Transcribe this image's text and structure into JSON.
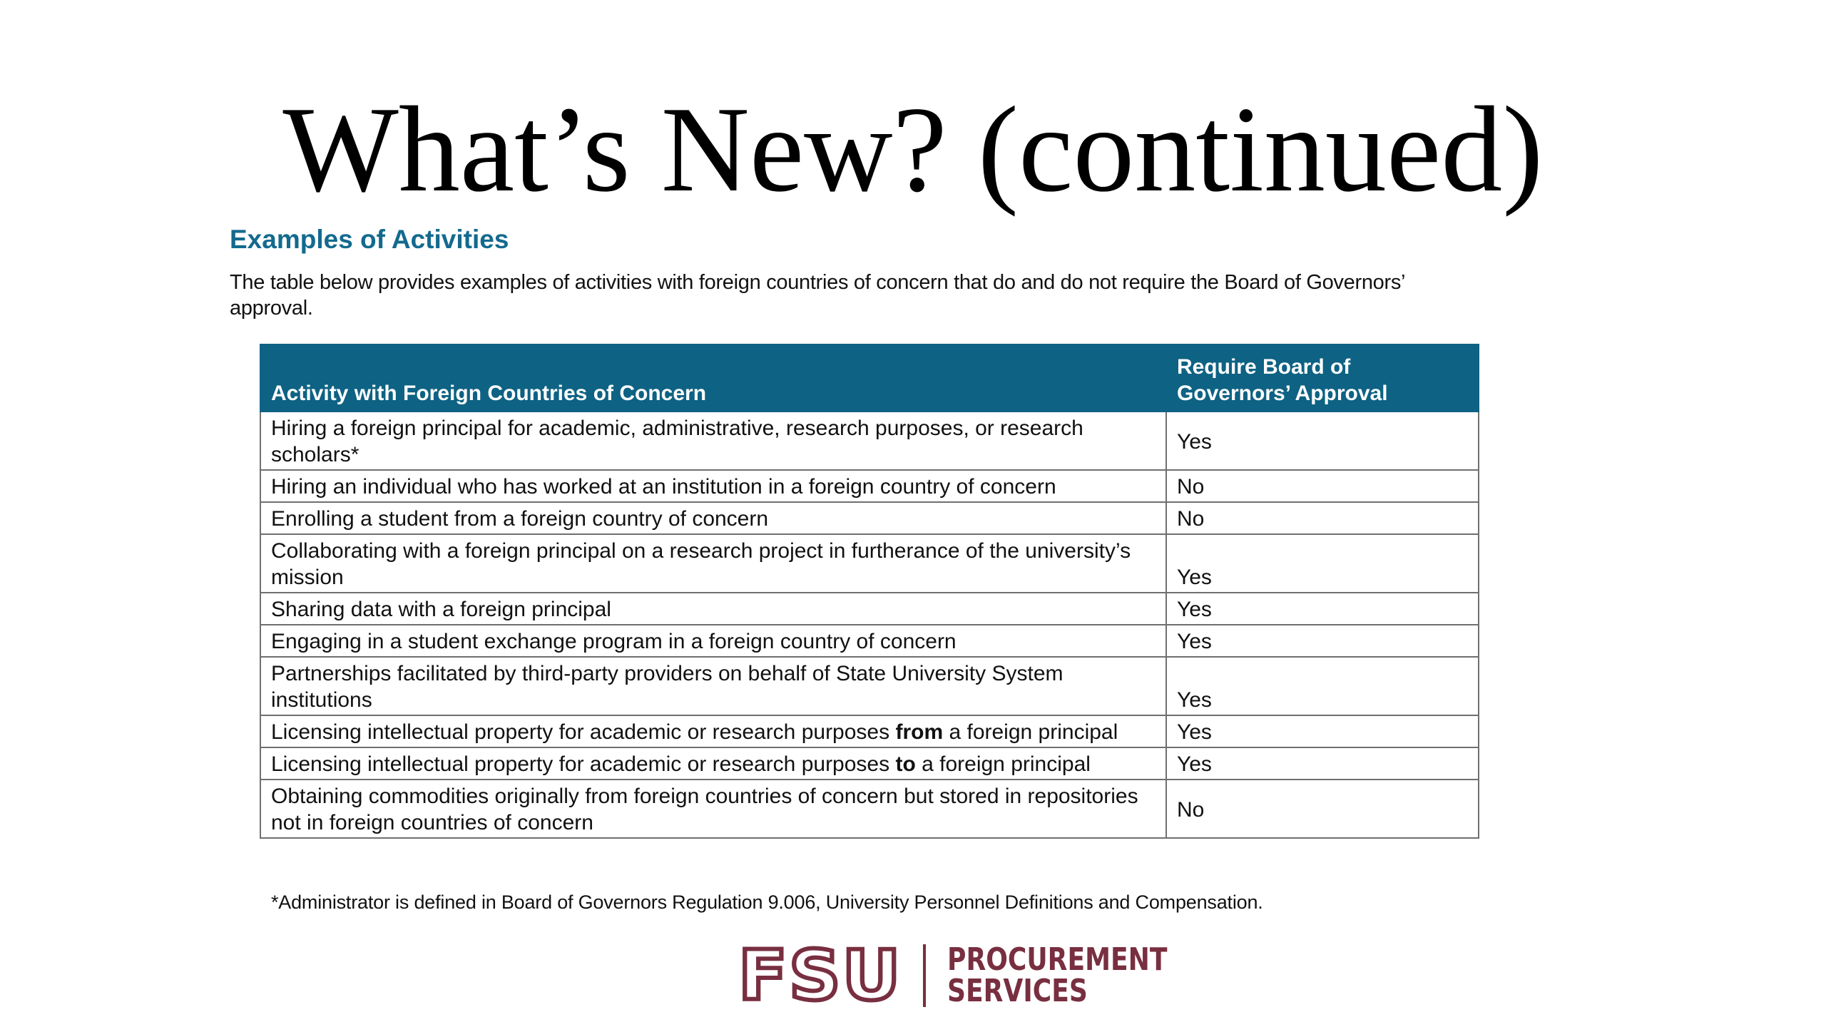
{
  "slide": {
    "title": "What’s New? (continued)",
    "section_heading": "Examples of Activities",
    "intro": "The table below provides examples of activities with foreign countries of concern that do and do not require the Board of Governors’ approval.",
    "table": {
      "headers": {
        "activity": "Activity with Foreign Countries of Concern",
        "approval": "Require Board of Governors’ Approval"
      },
      "rows": [
        {
          "activity": "Hiring a foreign principal for academic, administrative, research purposes, or research scholars*",
          "approval": "Yes"
        },
        {
          "activity": "Hiring an individual who has worked at an institution in a foreign country of concern",
          "approval": "No"
        },
        {
          "activity": "Enrolling a student from a foreign country of concern",
          "approval": "No"
        },
        {
          "activity": "Collaborating with a foreign principal on a research project in furtherance of the university’s mission",
          "approval": "Yes"
        },
        {
          "activity": "Sharing data with a foreign principal",
          "approval": "Yes"
        },
        {
          "activity": "Engaging in a student exchange program in a foreign country of concern",
          "approval": "Yes"
        },
        {
          "activity": "Partnerships facilitated by third-party providers on behalf of State University System institutions",
          "approval": "Yes"
        },
        {
          "activity_pre": "Licensing intellectual property for academic or research purposes ",
          "activity_bold": "from",
          "activity_post": " a foreign principal",
          "approval": "Yes"
        },
        {
          "activity_pre": "Licensing intellectual property for academic or research purposes ",
          "activity_bold": "to",
          "activity_post": " a foreign principal",
          "approval": "Yes"
        },
        {
          "activity": "Obtaining commodities originally from foreign countries of concern but stored in repositories not in foreign countries of concern",
          "approval": "No"
        }
      ]
    },
    "footnote": "*Administrator is defined in Board of Governors Regulation 9.006, University Personnel Definitions and Compensation."
  },
  "logo": {
    "mark": "FSU",
    "line1": "PROCUREMENT",
    "line2": "SERVICES",
    "color": "#782f40"
  },
  "colors": {
    "heading": "#136a8e",
    "table_header_bg": "#0e6283"
  }
}
